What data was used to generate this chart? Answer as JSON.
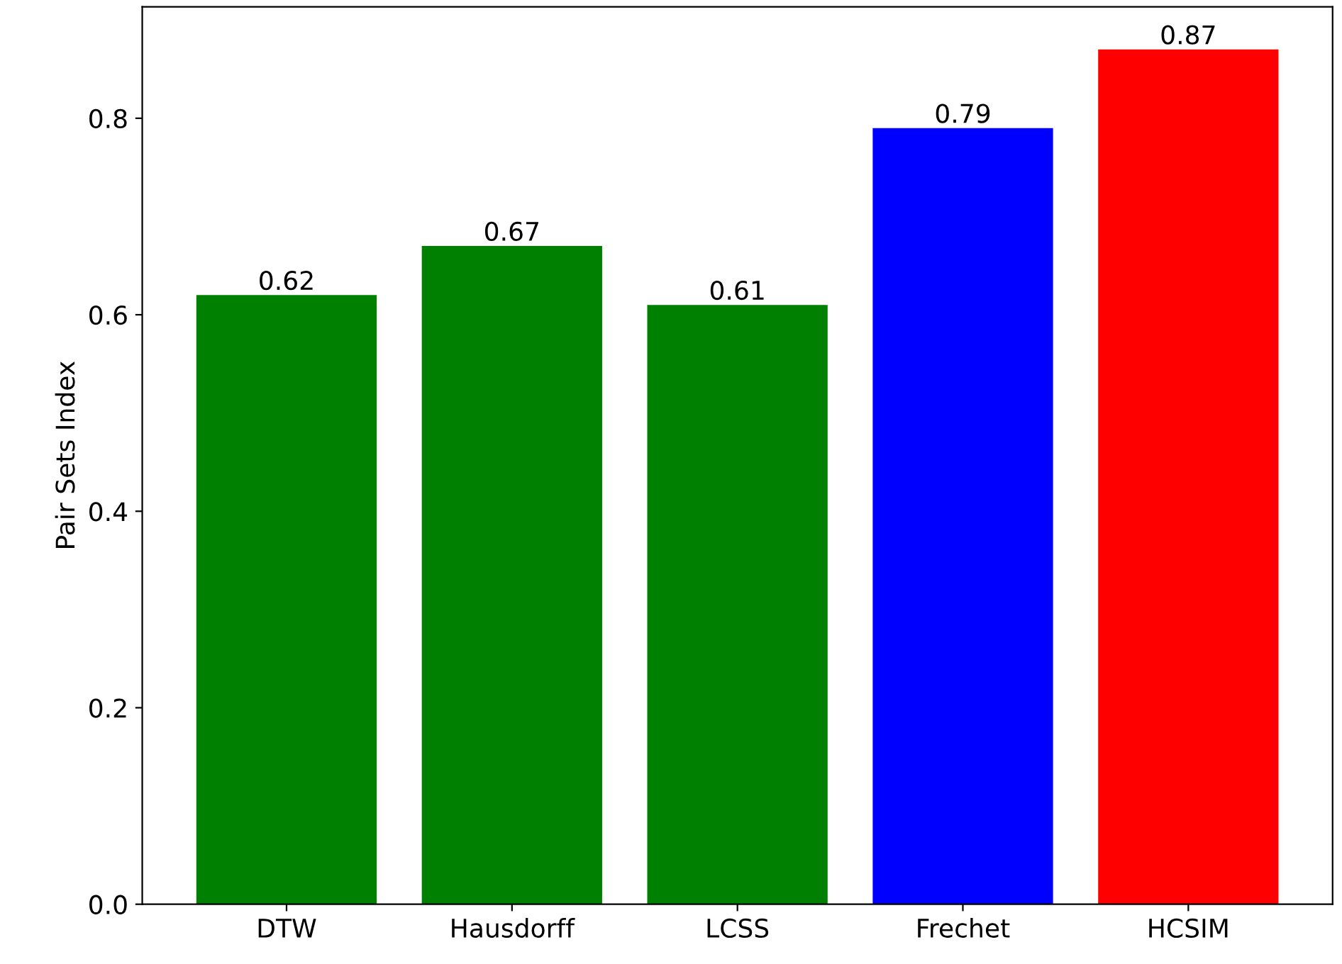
{
  "chart_data": {
    "type": "bar",
    "ylabel": "Pair Sets Index",
    "categories": [
      "DTW",
      "Hausdorff",
      "LCSS",
      "Frechet",
      "HCSIM"
    ],
    "values": [
      0.62,
      0.67,
      0.61,
      0.79,
      0.87
    ],
    "colors": [
      "#008000",
      "#008000",
      "#008000",
      "#0000ff",
      "#ff0000"
    ],
    "ylim": [
      0,
      0.9135
    ],
    "yticks": [
      {
        "value": 0,
        "label": "0.0"
      },
      0.2,
      0.4,
      0.6,
      0.8
    ],
    "data_labels": true,
    "grid": false
  }
}
